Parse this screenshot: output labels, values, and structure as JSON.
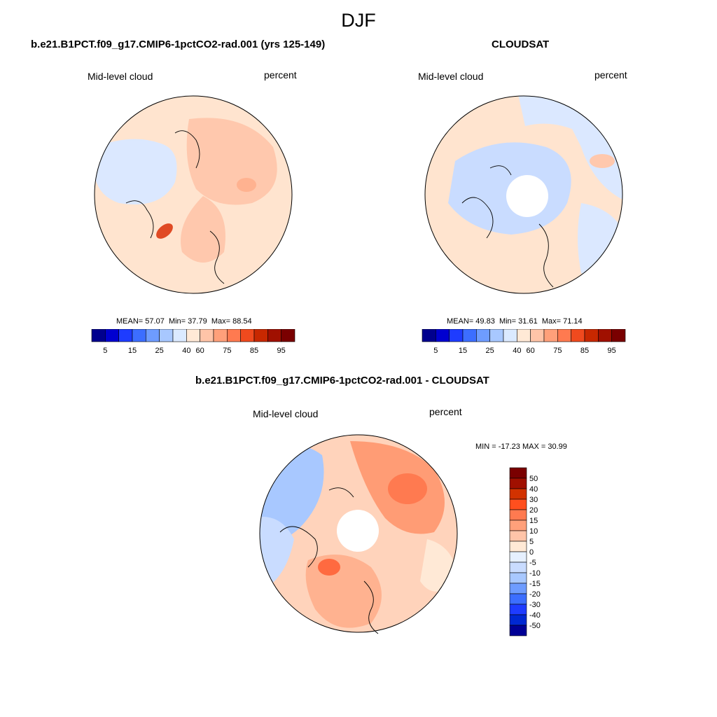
{
  "figure": {
    "title": "DJF"
  },
  "colors": {
    "abs_palette": [
      "#00008e",
      "#0000d0",
      "#1e3cff",
      "#3c6eff",
      "#6e9cff",
      "#a8c8ff",
      "#dbeaff",
      "#ffe9d6",
      "#ffc4a8",
      "#ffa07a",
      "#ff7a50",
      "#f04a1e",
      "#c82800",
      "#a01000",
      "#7a0000"
    ],
    "diff_palette": [
      "#7a0000",
      "#a01000",
      "#d23200",
      "#ff4f1e",
      "#ff7a50",
      "#ffa07a",
      "#ffc4a8",
      "#ffe9d6",
      "#e6f0ff",
      "#c9dcff",
      "#a8c8ff",
      "#6e9cff",
      "#3c6eff",
      "#1e3cff",
      "#0028d2",
      "#000096"
    ]
  },
  "chart_data": [
    {
      "type": "heatmap",
      "projection": "north-polar-stereographic",
      "title": "b.e21.B1PCT.f09_g17.CMIP6-1pctCO2-rad.001 (yrs 125-149)",
      "left_label": "Mid-level cloud",
      "right_label": "percent",
      "mean_label": "MEAN=",
      "mean": "57.07",
      "min_label": "Min=",
      "min": "37.79",
      "max_label": "Max=",
      "max": "88.54",
      "colorbar_ticks": [
        "5",
        "15",
        "25",
        "40",
        "60",
        "75",
        "85",
        "95"
      ],
      "legend_placement": "bottom"
    },
    {
      "type": "heatmap",
      "projection": "north-polar-stereographic",
      "title": "CLOUDSAT",
      "left_label": "Mid-level cloud",
      "right_label": "percent",
      "mean_label": "MEAN=",
      "mean": "49.83",
      "min_label": "Min=",
      "min": "31.61",
      "max_label": "Max=",
      "max": "71.14",
      "colorbar_ticks": [
        "5",
        "15",
        "25",
        "40",
        "60",
        "75",
        "85",
        "95"
      ],
      "legend_placement": "bottom"
    },
    {
      "type": "heatmap",
      "projection": "north-polar-stereographic",
      "title": "b.e21.B1PCT.f09_g17.CMIP6-1pctCO2-rad.001 - CLOUDSAT",
      "left_label": "Mid-level cloud",
      "right_label": "percent",
      "min_label": "MIN =",
      "min": "-17.23",
      "max_label": "MAX =",
      "max": "30.99",
      "colorbar_ticks": [
        "50",
        "40",
        "30",
        "20",
        "15",
        "10",
        "5",
        "0",
        "-5",
        "-10",
        "-15",
        "-20",
        "-30",
        "-40",
        "-50"
      ],
      "legend_placement": "right"
    }
  ]
}
